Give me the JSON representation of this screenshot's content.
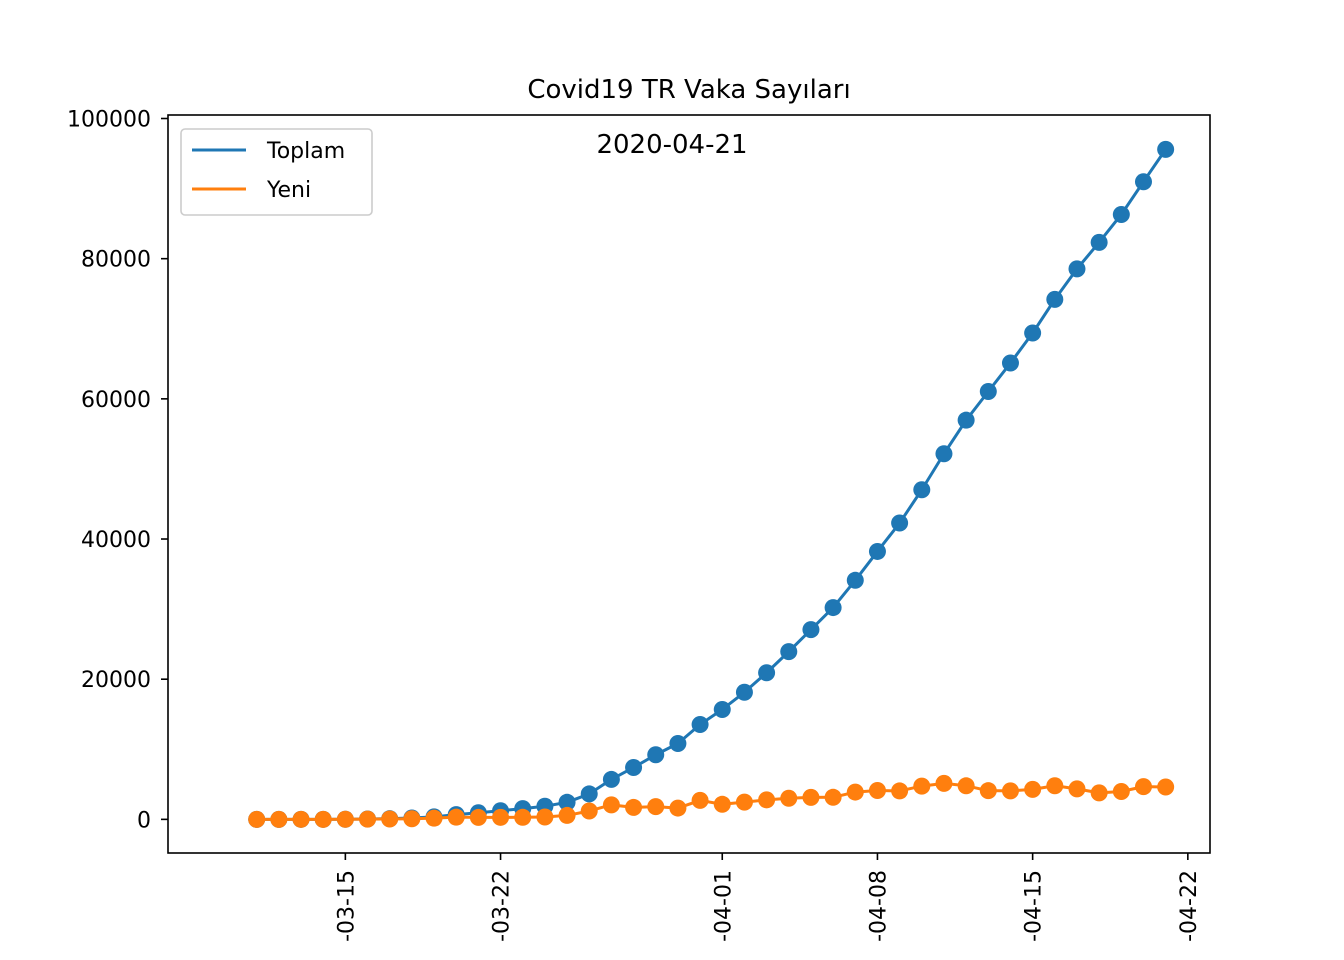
{
  "chart_data": {
    "type": "line",
    "title": "Covid19 TR Vaka Sayıları",
    "annotation": "2020-04-21",
    "xlabel": "",
    "ylabel": "",
    "ylim": [
      -4800,
      100500
    ],
    "xlim": [
      "2020-03-07",
      "2020-04-23"
    ],
    "yticks": [
      0,
      20000,
      40000,
      60000,
      80000,
      100000
    ],
    "xticks": [
      {
        "date": "2020-03-15",
        "label": "-03-15"
      },
      {
        "date": "2020-03-22",
        "label": "-03-22"
      },
      {
        "date": "2020-04-01",
        "label": "-04-01"
      },
      {
        "date": "2020-04-08",
        "label": "-04-08"
      },
      {
        "date": "2020-04-15",
        "label": "-04-15"
      },
      {
        "date": "2020-04-22",
        "label": "-04-22"
      }
    ],
    "legend": "top-left",
    "grid": false,
    "x": [
      "2020-03-11",
      "2020-03-12",
      "2020-03-13",
      "2020-03-14",
      "2020-03-15",
      "2020-03-16",
      "2020-03-17",
      "2020-03-18",
      "2020-03-19",
      "2020-03-20",
      "2020-03-21",
      "2020-03-22",
      "2020-03-23",
      "2020-03-24",
      "2020-03-25",
      "2020-03-26",
      "2020-03-27",
      "2020-03-28",
      "2020-03-29",
      "2020-03-30",
      "2020-03-31",
      "2020-04-01",
      "2020-04-02",
      "2020-04-03",
      "2020-04-04",
      "2020-04-05",
      "2020-04-06",
      "2020-04-07",
      "2020-04-08",
      "2020-04-09",
      "2020-04-10",
      "2020-04-11",
      "2020-04-12",
      "2020-04-13",
      "2020-04-14",
      "2020-04-15",
      "2020-04-16",
      "2020-04-17",
      "2020-04-18",
      "2020-04-19",
      "2020-04-20",
      "2020-04-21"
    ],
    "series": [
      {
        "name": "Toplam",
        "color": "#1f77b4",
        "values": [
          1,
          1,
          5,
          6,
          18,
          47,
          98,
          191,
          359,
          670,
          947,
          1236,
          1529,
          1872,
          2433,
          3629,
          5698,
          7402,
          9217,
          10827,
          13531,
          15679,
          18135,
          20921,
          23934,
          27069,
          30217,
          34109,
          38226,
          42282,
          47029,
          52167,
          56956,
          61049,
          65111,
          69392,
          74193,
          78546,
          82329,
          86306,
          90980,
          95591
        ]
      },
      {
        "name": "Yeni",
        "color": "#ff7f0e",
        "values": [
          1,
          0,
          4,
          1,
          12,
          29,
          51,
          93,
          168,
          311,
          277,
          289,
          293,
          343,
          561,
          1196,
          2069,
          1704,
          1815,
          1610,
          2704,
          2148,
          2456,
          2786,
          3013,
          3135,
          3148,
          3892,
          4117,
          4056,
          4747,
          5138,
          4789,
          4093,
          4062,
          4281,
          4801,
          4353,
          3783,
          3977,
          4674,
          4611
        ]
      }
    ]
  }
}
